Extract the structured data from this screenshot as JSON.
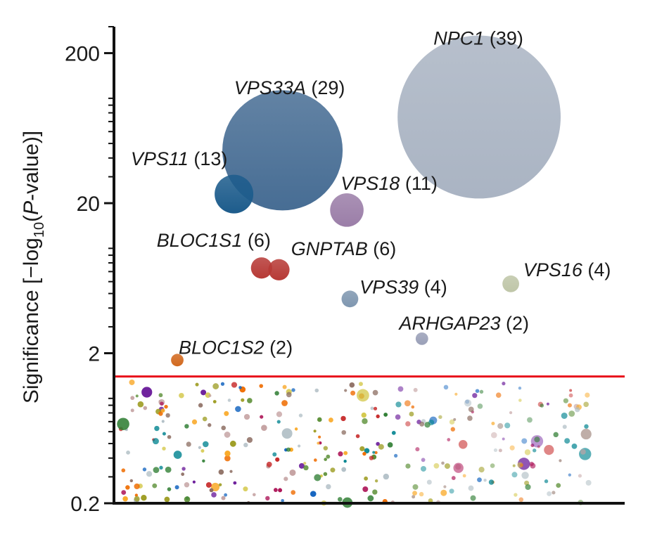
{
  "chart_data": {
    "type": "scatter",
    "title": "",
    "xlabel": "",
    "ylabel": {
      "prefix": "Significance [−log",
      "subscript": "10",
      "paren_open": "(",
      "p_letter": "P",
      "suffix": "-value)]"
    },
    "y_scale": "log",
    "ylim": [
      0.2,
      300
    ],
    "y_ticks": [
      {
        "value": 200,
        "label": "200"
      },
      {
        "value": 20,
        "label": "20"
      },
      {
        "value": 2,
        "label": "2"
      },
      {
        "value": 0.2,
        "label": "0.2"
      }
    ],
    "xlim": [
      0,
      100
    ],
    "threshold": {
      "value": 1.4,
      "color": "#e8101a"
    },
    "labeled_points": [
      {
        "gene": "NPC1",
        "count": "(39)",
        "x": 71.5,
        "y": 75,
        "size": 39,
        "color": "#aab4c3"
      },
      {
        "gene": "VPS33A",
        "count": "(29)",
        "x": 33.0,
        "y": 45,
        "size": 29,
        "color": "#476d94"
      },
      {
        "gene": "VPS11",
        "count": "(13)",
        "x": 23.5,
        "y": 23,
        "size": 13,
        "color": "#1d5c8c"
      },
      {
        "gene": "VPS18",
        "count": "(11)",
        "x": 45.6,
        "y": 18,
        "size": 11,
        "color": "#9b7ea8"
      },
      {
        "gene": "BLOC1S1",
        "count": "(6)",
        "x": 28.9,
        "y": 7.4,
        "size": 6,
        "color": "#b73a36"
      },
      {
        "gene": "GNPTAB",
        "count": "(6)",
        "x": 32.3,
        "y": 7.2,
        "size": 6,
        "color": "#b73a36"
      },
      {
        "gene": "VPS39",
        "count": "(4)",
        "x": 46.2,
        "y": 4.6,
        "size": 4,
        "color": "#7f97b0"
      },
      {
        "gene": "VPS16",
        "count": "(4)",
        "x": 77.7,
        "y": 5.8,
        "size": 4,
        "color": "#bfc6a8"
      },
      {
        "gene": "ARHGAP23",
        "count": "(2)",
        "x": 60.3,
        "y": 2.5,
        "size": 2,
        "color": "#9aa0b8"
      },
      {
        "gene": "BLOC1S2",
        "count": "(2)",
        "x": 12.4,
        "y": 1.8,
        "size": 2,
        "color": "#d2691e"
      }
    ],
    "background_points": {
      "count": 320,
      "y_range": [
        0.2,
        1.3
      ],
      "size_range": [
        1,
        3
      ],
      "palette": [
        "#2e7d32",
        "#c62828",
        "#1565c0",
        "#f9a825",
        "#6a1b9a",
        "#ef6c00",
        "#00838f",
        "#9e9d24",
        "#ad1457",
        "#558b2f",
        "#d4c84a",
        "#8d6e63",
        "#b0bec5",
        "#c5a3a3"
      ]
    }
  }
}
